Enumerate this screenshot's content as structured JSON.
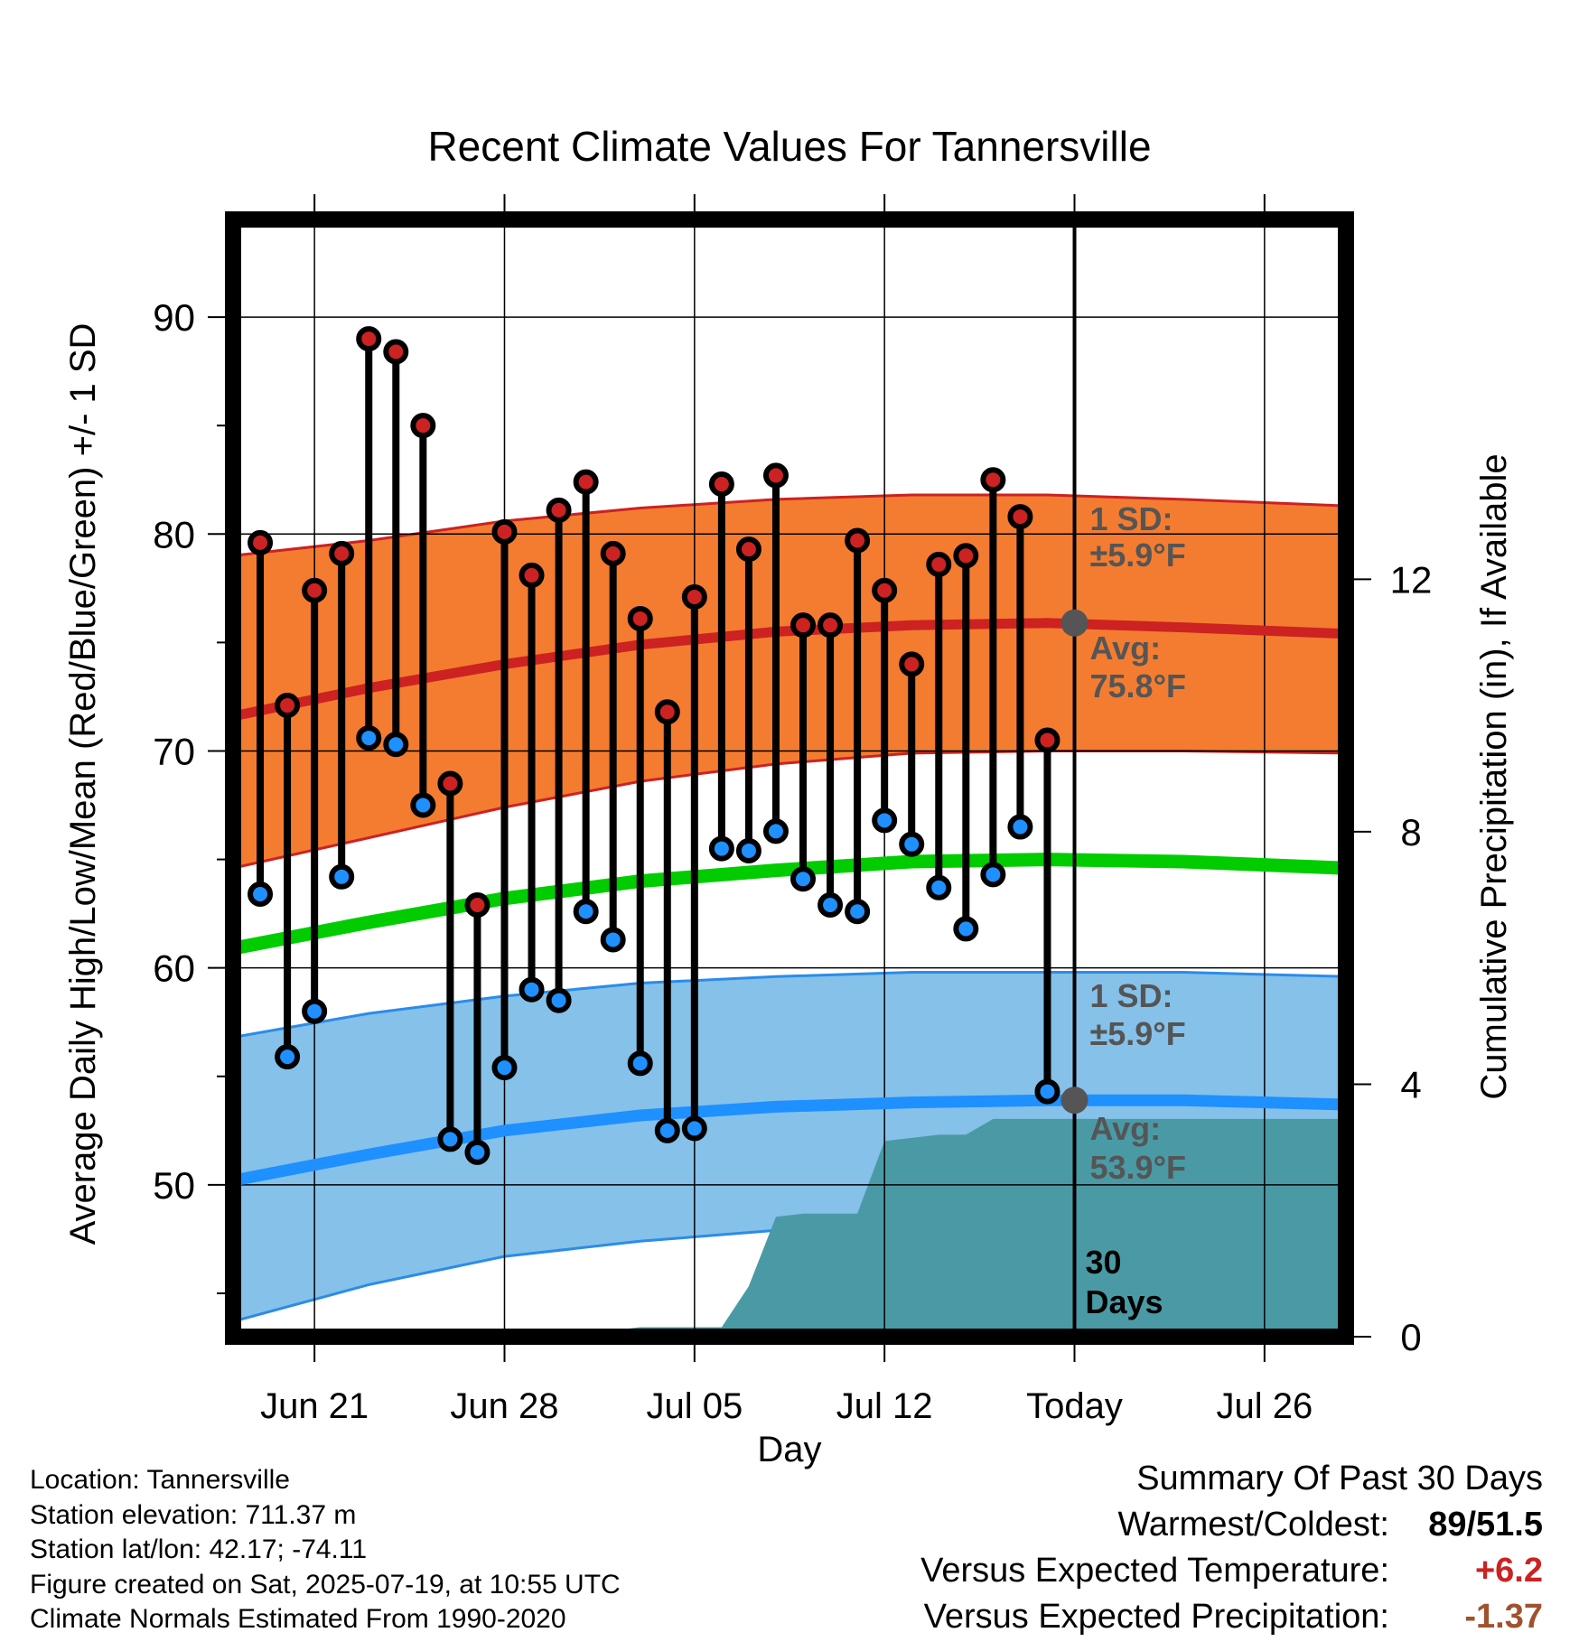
{
  "chart_data": {
    "type": "line",
    "title": "Recent Climate Values For Tannersville",
    "xlabel": "Day",
    "ylabel": "Average Daily High/Low/Mean (Red/Blue/Green) +/- 1 SD",
    "y2label": "Cumulative Precipitation (in), If Available",
    "ylim": [
      43,
      94.5
    ],
    "y2lim": [
      0,
      17.7
    ],
    "xlim": [
      "2025-06-18",
      "2025-07-29"
    ],
    "y_ticks": [
      50,
      60,
      70,
      80,
      90
    ],
    "y2_ticks": [
      0,
      4,
      8,
      12
    ],
    "x_ticks": [
      {
        "date": "2025-06-21",
        "label": "Jun 21"
      },
      {
        "date": "2025-06-28",
        "label": "Jun 28"
      },
      {
        "date": "2025-07-05",
        "label": "Jul 05"
      },
      {
        "date": "2025-07-12",
        "label": "Jul 12"
      },
      {
        "date": "2025-07-19",
        "label": "Today"
      },
      {
        "date": "2025-07-26",
        "label": "Jul 26"
      }
    ],
    "today": "2025-07-19",
    "grid": true,
    "series": [
      {
        "name": "High",
        "color": "#cc2222",
        "dates": [
          "2025-06-19",
          "2025-06-20",
          "2025-06-21",
          "2025-06-22",
          "2025-06-23",
          "2025-06-24",
          "2025-06-25",
          "2025-06-26",
          "2025-06-27",
          "2025-06-28",
          "2025-06-29",
          "2025-06-30",
          "2025-07-01",
          "2025-07-02",
          "2025-07-03",
          "2025-07-04",
          "2025-07-05",
          "2025-07-06",
          "2025-07-07",
          "2025-07-08",
          "2025-07-09",
          "2025-07-10",
          "2025-07-11",
          "2025-07-12",
          "2025-07-13",
          "2025-07-14",
          "2025-07-15",
          "2025-07-16",
          "2025-07-17",
          "2025-07-18"
        ],
        "values": [
          79.6,
          72.1,
          77.4,
          79.1,
          89.0,
          88.4,
          85.0,
          68.5,
          62.9,
          80.1,
          78.1,
          81.1,
          82.4,
          79.1,
          76.1,
          71.8,
          77.1,
          82.3,
          79.3,
          82.7,
          75.8,
          75.8,
          79.7,
          77.4,
          74.0,
          78.6,
          79.0,
          82.5,
          80.8,
          70.5
        ]
      },
      {
        "name": "Low",
        "color": "#1e90ff",
        "dates": [
          "2025-06-19",
          "2025-06-20",
          "2025-06-21",
          "2025-06-22",
          "2025-06-23",
          "2025-06-24",
          "2025-06-25",
          "2025-06-26",
          "2025-06-27",
          "2025-06-28",
          "2025-06-29",
          "2025-06-30",
          "2025-07-01",
          "2025-07-02",
          "2025-07-03",
          "2025-07-04",
          "2025-07-05",
          "2025-07-06",
          "2025-07-07",
          "2025-07-08",
          "2025-07-09",
          "2025-07-10",
          "2025-07-11",
          "2025-07-12",
          "2025-07-13",
          "2025-07-14",
          "2025-07-15",
          "2025-07-16",
          "2025-07-17",
          "2025-07-18"
        ],
        "values": [
          63.4,
          55.9,
          58.0,
          64.2,
          70.6,
          70.3,
          67.5,
          52.1,
          51.5,
          55.4,
          59.0,
          58.5,
          62.6,
          61.3,
          55.6,
          52.5,
          52.6,
          65.5,
          65.4,
          66.3,
          64.1,
          62.9,
          62.6,
          66.8,
          65.7,
          63.7,
          61.8,
          64.3,
          66.5,
          54.3
        ]
      }
    ],
    "normals": {
      "dates": [
        "2025-06-18",
        "2025-06-23",
        "2025-06-28",
        "2025-07-03",
        "2025-07-08",
        "2025-07-13",
        "2025-07-18",
        "2025-07-23",
        "2025-07-29"
      ],
      "high_avg": [
        71.6,
        72.9,
        74.0,
        74.9,
        75.5,
        75.8,
        75.9,
        75.7,
        75.4
      ],
      "high_upper": [
        79.0,
        79.7,
        80.6,
        81.2,
        81.6,
        81.8,
        81.8,
        81.6,
        81.3
      ],
      "high_lower": [
        64.6,
        66.0,
        67.4,
        68.6,
        69.4,
        69.9,
        70.0,
        70.0,
        69.9
      ],
      "mean_avg": [
        60.9,
        62.1,
        63.2,
        64.0,
        64.5,
        64.9,
        65.0,
        64.9,
        64.6
      ],
      "low_avg": [
        50.2,
        51.4,
        52.5,
        53.2,
        53.6,
        53.8,
        53.9,
        53.9,
        53.7
      ],
      "low_upper": [
        56.8,
        57.9,
        58.7,
        59.3,
        59.6,
        59.8,
        59.8,
        59.8,
        59.6
      ],
      "low_lower": [
        43.7,
        45.4,
        46.7,
        47.4,
        47.9,
        48.1,
        48.2,
        48.1,
        48.1
      ]
    },
    "precipitation": {
      "color": "#4a9aa5",
      "dates": [
        "2025-06-18",
        "2025-06-29",
        "2025-06-30",
        "2025-07-02",
        "2025-07-03",
        "2025-07-06",
        "2025-07-07",
        "2025-07-08",
        "2025-07-09",
        "2025-07-10",
        "2025-07-11",
        "2025-07-12",
        "2025-07-13",
        "2025-07-14",
        "2025-07-15",
        "2025-07-16",
        "2025-07-17",
        "2025-07-18",
        "2025-07-29"
      ],
      "values": [
        0.0,
        0.0,
        0.1,
        0.1,
        0.15,
        0.15,
        0.8,
        1.9,
        1.95,
        1.95,
        1.95,
        3.1,
        3.15,
        3.2,
        3.2,
        3.45,
        3.45,
        3.45,
        3.45
      ]
    },
    "annotations": {
      "high_sd_label": "1 SD:",
      "high_sd_value": "±5.9°F",
      "high_avg_label": "Avg:",
      "high_avg_value": "75.8°F",
      "low_sd_label": "1 SD:",
      "low_sd_value": "±5.9°F",
      "low_avg_label": "Avg:",
      "low_avg_value": "53.9°F",
      "days_number": "30",
      "days_label": "Days"
    }
  },
  "footer": {
    "location": "Location: Tannersville",
    "elevation": "Station elevation: 711.37 m",
    "latlon": "Station lat/lon: 42.17; -74.11",
    "created": "Figure created on Sat, 2025-07-19, at 10:55 UTC",
    "normals": "Climate Normals Estimated From 1990-2020"
  },
  "summary": {
    "title": "Summary Of Past 30 Days",
    "warmest_label": "Warmest/Coldest:",
    "warmest_value": "89/51.5",
    "temp_label": "Versus Expected Temperature:",
    "temp_value": "+6.2",
    "temp_color": "#cc2222",
    "precip_label": "Versus Expected Precipitation:",
    "precip_value": "-1.37",
    "precip_color": "#a0522d"
  }
}
